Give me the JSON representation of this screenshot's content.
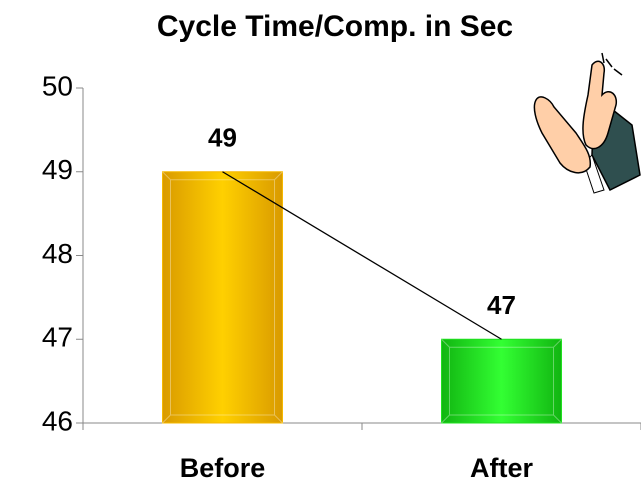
{
  "chart_data": {
    "type": "bar",
    "title": "Cycle Time/Comp. in Sec",
    "categories": [
      "Before",
      "After"
    ],
    "values": [
      49,
      47
    ],
    "colors": [
      "#f5b800",
      "#1fe01f"
    ],
    "ylim": [
      46,
      50
    ],
    "yticks": [
      46,
      47,
      48,
      49,
      50
    ],
    "trend_line": true,
    "data_labels": true
  }
}
